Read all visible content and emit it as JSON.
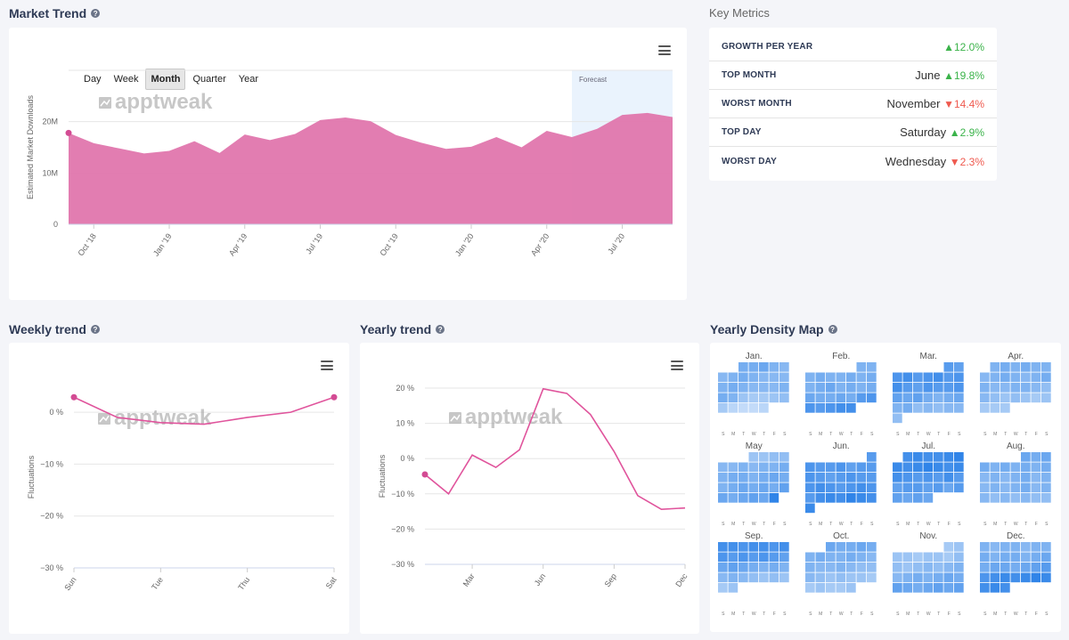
{
  "market_trend": {
    "title": "Market Trend",
    "periods": [
      "Day",
      "Week",
      "Month",
      "Quarter",
      "Year"
    ],
    "active_period": "Month",
    "forecast_label": "Forecast",
    "watermark": "apptweak"
  },
  "key_metrics": {
    "title": "Key Metrics",
    "rows": [
      {
        "label": "GROWTH PER YEAR",
        "name": "",
        "delta": "12.0%",
        "dir": "up"
      },
      {
        "label": "TOP MONTH",
        "name": "June",
        "delta": "19.8%",
        "dir": "up"
      },
      {
        "label": "WORST MONTH",
        "name": "November",
        "delta": "14.4%",
        "dir": "down"
      },
      {
        "label": "TOP DAY",
        "name": "Saturday",
        "delta": "2.9%",
        "dir": "up"
      },
      {
        "label": "WORST DAY",
        "name": "Wednesday",
        "delta": "2.3%",
        "dir": "down"
      }
    ]
  },
  "weekly": {
    "title": "Weekly trend",
    "watermark": "apptweak"
  },
  "yearly": {
    "title": "Yearly trend",
    "watermark": "apptweak"
  },
  "density": {
    "title": "Yearly Density Map",
    "dow": [
      "S",
      "M",
      "T",
      "W",
      "T",
      "F",
      "S"
    ]
  },
  "colors": {
    "area": "#e076ad",
    "line": "#e0549c",
    "forecast": "#eaf3fd",
    "title": "#2e3a55"
  },
  "chart_data": [
    {
      "type": "area",
      "ylabel": "Estimated Market Downloads",
      "xlabel": "",
      "y_ticks": [
        "0",
        "10M",
        "20M"
      ],
      "ylim": [
        0,
        30000000
      ],
      "x_tick_labels": [
        "Oct '18",
        "Jan '19",
        "Apr '19",
        "Jul '19",
        "Oct '19",
        "Jan '20",
        "Apr '20",
        "Jul '20"
      ],
      "x_tick_index": [
        1,
        4,
        7,
        10,
        13,
        16,
        19,
        22
      ],
      "values": [
        17800000,
        15800000,
        14800000,
        13800000,
        14300000,
        16200000,
        13900000,
        17500000,
        16400000,
        17600000,
        20300000,
        20800000,
        20100000,
        17400000,
        15900000,
        14700000,
        15100000,
        17000000,
        15000000,
        18200000,
        17000000,
        18600000,
        21300000,
        21700000,
        20900000
      ],
      "forecast_start_index": 20
    },
    {
      "type": "line",
      "ylabel": "Fluctuations",
      "x_tick_labels": [
        "Sun",
        "Tue",
        "Thu",
        "Sat"
      ],
      "x_tick_index": [
        0,
        2,
        4,
        6
      ],
      "y_ticks": [
        "0 %",
        "−10 %",
        "−20 %",
        "−30 %"
      ],
      "ylim": [
        -30,
        5
      ],
      "values": [
        2.9,
        -1.0,
        -2.0,
        -2.3,
        -1.0,
        0.0,
        2.9
      ]
    },
    {
      "type": "line",
      "ylabel": "Fluctuations",
      "x_tick_labels": [
        "Mar",
        "Jun",
        "Sep",
        "Dec"
      ],
      "x_tick_index": [
        2,
        5,
        8,
        11
      ],
      "y_ticks": [
        "20 %",
        "10 %",
        "0 %",
        "−10 %",
        "−20 %",
        "−30 %"
      ],
      "ylim": [
        -30,
        20
      ],
      "values": [
        -4.5,
        -10.0,
        1.0,
        -2.5,
        2.5,
        19.8,
        18.5,
        12.5,
        2.0,
        -10.5,
        -14.4,
        -14.0
      ]
    },
    {
      "type": "heatmap",
      "months": [
        "Jan.",
        "Feb.",
        "Mar.",
        "Apr.",
        "May",
        "Jun.",
        "Jul.",
        "Aug.",
        "Sep.",
        "Oct.",
        "Nov.",
        "Dec."
      ],
      "start_dow": [
        2,
        5,
        5,
        1,
        3,
        6,
        1,
        4,
        0,
        2,
        5,
        0
      ],
      "days": [
        31,
        28,
        31,
        30,
        31,
        30,
        31,
        31,
        30,
        31,
        30,
        31
      ],
      "levels": [
        [
          0.55,
          0.55,
          0.6,
          0.5,
          0.45,
          0.45,
          0.5,
          0.55,
          0.5,
          0.45,
          0.45,
          0.45,
          0.5,
          0.55,
          0.5,
          0.45,
          0.45,
          0.45,
          0.5,
          0.55,
          0.5,
          0.35,
          0.3,
          0.3,
          0.35,
          0.4,
          0.3,
          0.2,
          0.15,
          0.15,
          0.2
        ],
        [
          0.5,
          0.5,
          0.5,
          0.55,
          0.5,
          0.5,
          0.55,
          0.5,
          0.55,
          0.5,
          0.55,
          0.6,
          0.5,
          0.55,
          0.5,
          0.55,
          0.6,
          0.55,
          0.55,
          0.6,
          0.55,
          0.7,
          0.75,
          0.75,
          0.7,
          0.75,
          0.8,
          0.8
        ],
        [
          0.7,
          0.65,
          0.75,
          0.8,
          0.7,
          0.75,
          0.8,
          0.7,
          0.75,
          0.8,
          0.7,
          0.65,
          0.75,
          0.7,
          0.7,
          0.75,
          0.65,
          0.6,
          0.65,
          0.55,
          0.5,
          0.55,
          0.6,
          0.5,
          0.55,
          0.4,
          0.45,
          0.4,
          0.45,
          0.45,
          0.4
        ],
        [
          0.5,
          0.55,
          0.5,
          0.55,
          0.5,
          0.5,
          0.45,
          0.5,
          0.55,
          0.5,
          0.45,
          0.5,
          0.55,
          0.5,
          0.45,
          0.45,
          0.5,
          0.5,
          0.45,
          0.4,
          0.45,
          0.4,
          0.35,
          0.4,
          0.35,
          0.3,
          0.35,
          0.3,
          0.3,
          0.3
        ],
        [
          0.35,
          0.35,
          0.4,
          0.4,
          0.45,
          0.45,
          0.5,
          0.45,
          0.5,
          0.5,
          0.55,
          0.5,
          0.55,
          0.55,
          0.5,
          0.55,
          0.6,
          0.55,
          0.5,
          0.55,
          0.6,
          0.55,
          0.6,
          0.55,
          0.65,
          0.6,
          0.55,
          0.6,
          0.65,
          0.6,
          0.9
        ],
        [
          0.7,
          0.75,
          0.7,
          0.7,
          0.75,
          0.65,
          0.7,
          0.7,
          0.75,
          0.7,
          0.65,
          0.7,
          0.75,
          0.7,
          0.7,
          0.75,
          0.8,
          0.75,
          0.7,
          0.75,
          0.8,
          0.75,
          0.7,
          0.8,
          0.85,
          0.8,
          0.9,
          0.85,
          0.8,
          0.85
        ],
        [
          0.8,
          0.85,
          0.8,
          0.8,
          0.85,
          0.9,
          0.85,
          0.8,
          0.85,
          0.9,
          0.85,
          0.8,
          0.85,
          0.8,
          0.75,
          0.7,
          0.75,
          0.7,
          0.8,
          0.7,
          0.65,
          0.7,
          0.7,
          0.65,
          0.7,
          0.6,
          0.7,
          0.65,
          0.6,
          0.65,
          0.6
        ],
        [
          0.6,
          0.55,
          0.6,
          0.55,
          0.5,
          0.55,
          0.5,
          0.55,
          0.5,
          0.55,
          0.45,
          0.5,
          0.45,
          0.5,
          0.55,
          0.45,
          0.5,
          0.45,
          0.5,
          0.45,
          0.5,
          0.55,
          0.45,
          0.5,
          0.45,
          0.4,
          0.45,
          0.4,
          0.45,
          0.4,
          0.4
        ],
        [
          0.8,
          0.8,
          0.75,
          0.8,
          0.8,
          0.75,
          0.8,
          0.75,
          0.7,
          0.75,
          0.7,
          0.75,
          0.7,
          0.65,
          0.6,
          0.65,
          0.6,
          0.55,
          0.5,
          0.55,
          0.5,
          0.45,
          0.5,
          0.45,
          0.4,
          0.35,
          0.4,
          0.35,
          0.3,
          0.35
        ],
        [
          0.6,
          0.55,
          0.55,
          0.6,
          0.55,
          0.5,
          0.55,
          0.5,
          0.5,
          0.55,
          0.5,
          0.45,
          0.5,
          0.45,
          0.45,
          0.5,
          0.45,
          0.4,
          0.4,
          0.45,
          0.4,
          0.35,
          0.4,
          0.35,
          0.35,
          0.3,
          0.3,
          0.35,
          0.3,
          0.3,
          0.35
        ],
        [
          0.3,
          0.35,
          0.35,
          0.35,
          0.3,
          0.35,
          0.35,
          0.3,
          0.4,
          0.4,
          0.35,
          0.4,
          0.45,
          0.4,
          0.45,
          0.5,
          0.45,
          0.5,
          0.55,
          0.5,
          0.55,
          0.6,
          0.55,
          0.65,
          0.6,
          0.55,
          0.6,
          0.65,
          0.6,
          0.65
        ],
        [
          0.5,
          0.45,
          0.5,
          0.5,
          0.45,
          0.5,
          0.5,
          0.55,
          0.5,
          0.55,
          0.55,
          0.5,
          0.55,
          0.6,
          0.55,
          0.6,
          0.6,
          0.55,
          0.6,
          0.65,
          0.7,
          0.75,
          0.8,
          0.85,
          0.8,
          0.85,
          0.9,
          0.85,
          0.8,
          0.85,
          0.8
        ]
      ]
    }
  ]
}
